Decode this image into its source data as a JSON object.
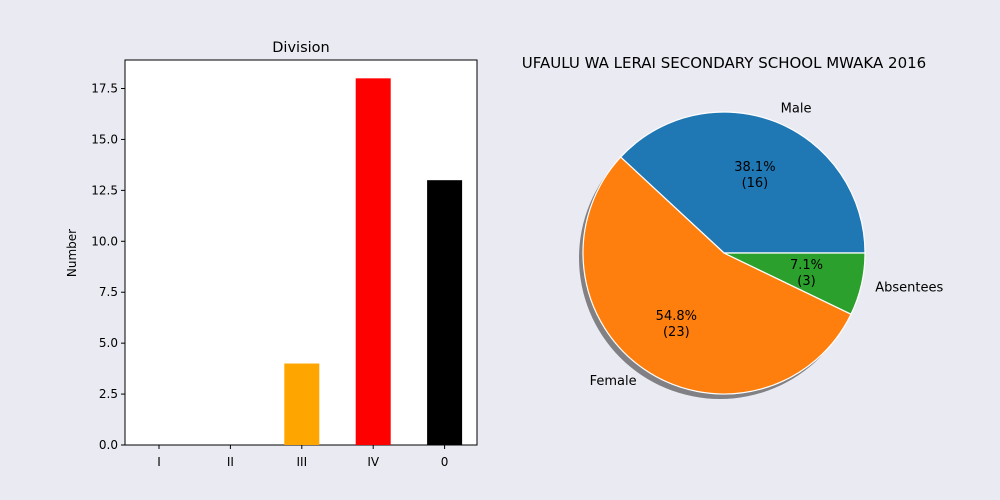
{
  "chart_data": [
    {
      "type": "bar",
      "title": "Division",
      "xlabel": "",
      "ylabel": "Number",
      "categories": [
        "I",
        "II",
        "III",
        "IV",
        "0"
      ],
      "values": [
        0,
        0,
        4,
        18,
        13
      ],
      "colors": [
        "#1f77b4",
        "#1f77b4",
        "#ffa500",
        "#ff0000",
        "#000000"
      ],
      "ylim": [
        0,
        18.9
      ],
      "yticks": [
        0,
        2.5,
        5,
        7.5,
        10,
        12.5,
        15,
        17.5
      ],
      "ytick_labels": [
        "0.0",
        "2.5",
        "5.0",
        "7.5",
        "10.0",
        "12.5",
        "15.0",
        "17.5"
      ],
      "grid": false
    },
    {
      "type": "pie",
      "title": "UFAULU WA LERAI SECONDARY SCHOOL MWAKA 2016",
      "labels": [
        "Male",
        "Female",
        "Absentees"
      ],
      "values": [
        16,
        23,
        3
      ],
      "percent_labels": [
        "38.1%",
        "54.8%",
        "7.1%"
      ],
      "count_labels": [
        "(16)",
        "(23)",
        "(3)"
      ],
      "colors": [
        "#1f77b4",
        "#ff7f0e",
        "#2ca02c"
      ],
      "shadow": true
    }
  ]
}
